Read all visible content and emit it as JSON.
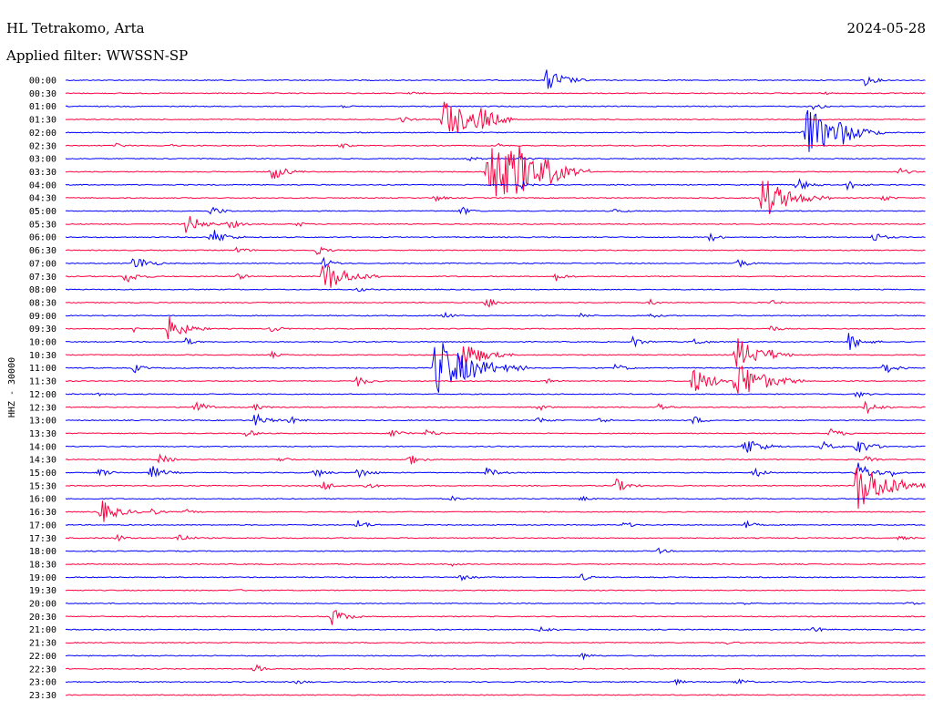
{
  "header": {
    "station": "HL Tetrakomo, Arta",
    "date": "2024-05-28",
    "filter": "Applied filter: WWSSN-SP"
  },
  "chart_data": {
    "type": "line",
    "title": "HL Tetrakomo, Arta",
    "subtitle": "Applied filter: WWSSN-SP",
    "date": "2024-05-28",
    "ylabel": "HHZ - 30000",
    "xlabel": "",
    "colors": {
      "even": "#0000ff",
      "odd": "#ff0040"
    },
    "grid": false,
    "legend": "none",
    "rows": [
      {
        "label": "00:00",
        "events": [
          [
            0.56,
            14
          ],
          [
            0.93,
            6
          ]
        ]
      },
      {
        "label": "00:30",
        "events": [
          [
            0.4,
            2
          ],
          [
            0.88,
            2
          ]
        ]
      },
      {
        "label": "01:00",
        "events": [
          [
            0.32,
            2
          ],
          [
            0.87,
            5
          ]
        ]
      },
      {
        "label": "01:30",
        "events": [
          [
            0.44,
            25
          ],
          [
            0.48,
            12
          ],
          [
            0.39,
            4
          ]
        ]
      },
      {
        "label": "02:00",
        "events": [
          [
            0.86,
            30
          ],
          [
            0.9,
            8
          ]
        ]
      },
      {
        "label": "02:30",
        "events": [
          [
            0.06,
            3
          ],
          [
            0.32,
            3
          ],
          [
            0.5,
            3
          ],
          [
            0.12,
            2
          ]
        ]
      },
      {
        "label": "03:00",
        "events": [
          [
            0.47,
            3
          ],
          [
            0.53,
            4
          ]
        ]
      },
      {
        "label": "03:30",
        "events": [
          [
            0.24,
            10
          ],
          [
            0.49,
            40
          ],
          [
            0.52,
            18
          ],
          [
            0.56,
            8
          ],
          [
            0.97,
            4
          ]
        ]
      },
      {
        "label": "04:00",
        "events": [
          [
            0.53,
            4
          ],
          [
            0.85,
            8
          ],
          [
            0.91,
            6
          ]
        ]
      },
      {
        "label": "04:30",
        "events": [
          [
            0.43,
            4
          ],
          [
            0.81,
            25
          ],
          [
            0.95,
            4
          ]
        ]
      },
      {
        "label": "05:00",
        "events": [
          [
            0.17,
            6
          ],
          [
            0.46,
            5
          ],
          [
            0.64,
            3
          ]
        ]
      },
      {
        "label": "05:30",
        "events": [
          [
            0.14,
            12
          ],
          [
            0.19,
            6
          ],
          [
            0.27,
            3
          ]
        ]
      },
      {
        "label": "06:00",
        "events": [
          [
            0.17,
            10
          ],
          [
            0.75,
            5
          ],
          [
            0.94,
            6
          ]
        ]
      },
      {
        "label": "06:30",
        "events": [
          [
            0.2,
            4
          ],
          [
            0.29,
            6
          ]
        ]
      },
      {
        "label": "07:00",
        "events": [
          [
            0.08,
            10
          ],
          [
            0.3,
            6
          ],
          [
            0.78,
            6
          ]
        ]
      },
      {
        "label": "07:30",
        "events": [
          [
            0.07,
            8
          ],
          [
            0.3,
            20
          ],
          [
            0.57,
            5
          ],
          [
            0.2,
            4
          ]
        ]
      },
      {
        "label": "08:00",
        "events": [
          [
            0.34,
            3
          ]
        ]
      },
      {
        "label": "08:30",
        "events": [
          [
            0.49,
            6
          ],
          [
            0.68,
            3
          ],
          [
            0.82,
            3
          ]
        ]
      },
      {
        "label": "09:00",
        "events": [
          [
            0.44,
            4
          ],
          [
            0.6,
            3
          ],
          [
            0.68,
            3
          ]
        ]
      },
      {
        "label": "09:30",
        "events": [
          [
            0.12,
            14
          ],
          [
            0.08,
            4
          ],
          [
            0.24,
            4
          ],
          [
            0.82,
            4
          ]
        ]
      },
      {
        "label": "10:00",
        "events": [
          [
            0.14,
            4
          ],
          [
            0.66,
            6
          ],
          [
            0.73,
            5
          ],
          [
            0.91,
            10
          ]
        ]
      },
      {
        "label": "10:30",
        "events": [
          [
            0.46,
            18
          ],
          [
            0.78,
            20
          ],
          [
            0.24,
            3
          ],
          [
            0.82,
            3
          ]
        ]
      },
      {
        "label": "11:00",
        "events": [
          [
            0.43,
            35
          ],
          [
            0.08,
            5
          ],
          [
            0.64,
            5
          ],
          [
            0.95,
            8
          ]
        ]
      },
      {
        "label": "11:30",
        "events": [
          [
            0.34,
            6
          ],
          [
            0.73,
            16
          ],
          [
            0.78,
            25
          ],
          [
            0.56,
            3
          ]
        ]
      },
      {
        "label": "12:00",
        "events": [
          [
            0.04,
            3
          ],
          [
            0.92,
            4
          ]
        ]
      },
      {
        "label": "12:30",
        "events": [
          [
            0.15,
            8
          ],
          [
            0.22,
            4
          ],
          [
            0.55,
            4
          ],
          [
            0.69,
            5
          ],
          [
            0.93,
            8
          ]
        ]
      },
      {
        "label": "13:00",
        "events": [
          [
            0.22,
            8
          ],
          [
            0.26,
            5
          ],
          [
            0.55,
            4
          ],
          [
            0.62,
            4
          ],
          [
            0.73,
            5
          ]
        ]
      },
      {
        "label": "13:30",
        "events": [
          [
            0.21,
            5
          ],
          [
            0.38,
            6
          ],
          [
            0.42,
            5
          ],
          [
            0.89,
            6
          ]
        ]
      },
      {
        "label": "14:00",
        "events": [
          [
            0.79,
            12
          ],
          [
            0.88,
            6
          ],
          [
            0.92,
            10
          ]
        ]
      },
      {
        "label": "14:30",
        "events": [
          [
            0.11,
            6
          ],
          [
            0.25,
            4
          ],
          [
            0.4,
            6
          ],
          [
            0.93,
            4
          ]
        ]
      },
      {
        "label": "15:00",
        "events": [
          [
            0.04,
            5
          ],
          [
            0.1,
            8
          ],
          [
            0.29,
            6
          ],
          [
            0.34,
            7
          ],
          [
            0.49,
            6
          ],
          [
            0.8,
            6
          ],
          [
            0.92,
            12
          ],
          [
            0.96,
            4
          ]
        ]
      },
      {
        "label": "15:30",
        "events": [
          [
            0.3,
            6
          ],
          [
            0.35,
            4
          ],
          [
            0.64,
            8
          ],
          [
            0.92,
            30
          ]
        ]
      },
      {
        "label": "16:00",
        "events": [
          [
            0.45,
            3
          ],
          [
            0.6,
            3
          ]
        ]
      },
      {
        "label": "16:30",
        "events": [
          [
            0.04,
            14
          ],
          [
            0.1,
            4
          ],
          [
            0.14,
            3
          ]
        ]
      },
      {
        "label": "17:00",
        "events": [
          [
            0.34,
            6
          ],
          [
            0.65,
            4
          ],
          [
            0.79,
            5
          ]
        ]
      },
      {
        "label": "17:30",
        "events": [
          [
            0.06,
            4
          ],
          [
            0.13,
            6
          ],
          [
            0.97,
            3
          ]
        ]
      },
      {
        "label": "18:00",
        "events": [
          [
            0.69,
            3
          ]
        ]
      },
      {
        "label": "18:30",
        "events": [
          [
            0.45,
            2
          ]
        ]
      },
      {
        "label": "19:00",
        "events": [
          [
            0.46,
            4
          ],
          [
            0.6,
            4
          ]
        ]
      },
      {
        "label": "19:30",
        "events": [
          [
            0.2,
            1
          ]
        ]
      },
      {
        "label": "20:00",
        "events": [
          [
            0.79,
            2
          ],
          [
            0.98,
            2
          ]
        ]
      },
      {
        "label": "20:30",
        "events": [
          [
            0.31,
            10
          ]
        ]
      },
      {
        "label": "21:00",
        "events": [
          [
            0.55,
            5
          ],
          [
            0.87,
            4
          ]
        ]
      },
      {
        "label": "21:30",
        "events": [
          [
            0.77,
            2
          ]
        ]
      },
      {
        "label": "22:00",
        "events": [
          [
            0.6,
            4
          ]
        ]
      },
      {
        "label": "22:30",
        "events": [
          [
            0.22,
            5
          ]
        ]
      },
      {
        "label": "23:00",
        "events": [
          [
            0.27,
            3
          ],
          [
            0.71,
            3
          ],
          [
            0.78,
            5
          ]
        ]
      },
      {
        "label": "23:30",
        "events": []
      }
    ]
  }
}
